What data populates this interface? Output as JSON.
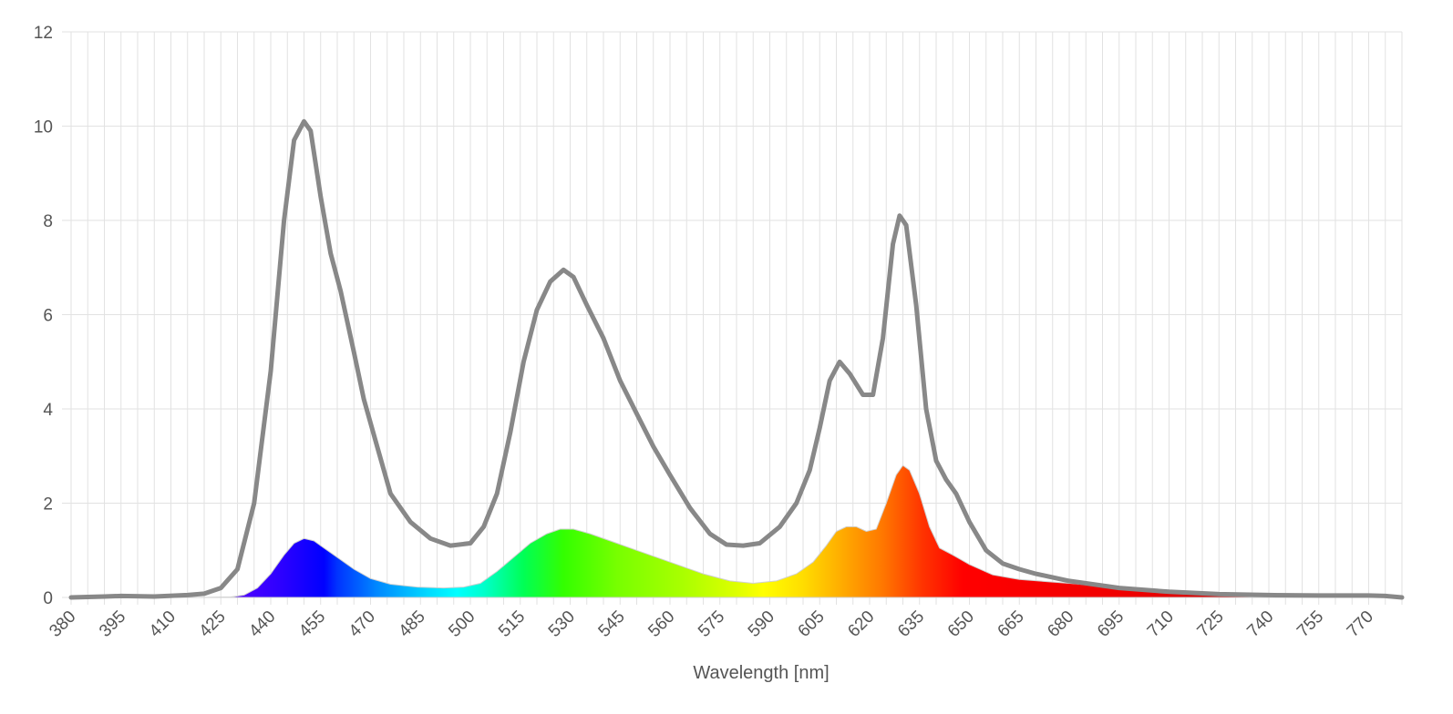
{
  "chart_data": {
    "type": "area",
    "title": "",
    "xlabel": "Wavelength [nm]",
    "ylabel": "",
    "xlim": [
      380,
      780
    ],
    "ylim": [
      0,
      12
    ],
    "grid": true,
    "legend": "none",
    "x_ticks": [
      380,
      395,
      410,
      425,
      440,
      455,
      470,
      485,
      500,
      515,
      530,
      545,
      560,
      575,
      590,
      605,
      620,
      635,
      650,
      665,
      680,
      695,
      710,
      725,
      740,
      755,
      770
    ],
    "y_ticks": [
      0,
      2,
      4,
      6,
      8,
      10,
      12
    ],
    "series": [
      {
        "style": "line",
        "color": "#888888",
        "points": [
          [
            380,
            0.0
          ],
          [
            390,
            0.02
          ],
          [
            395,
            0.03
          ],
          [
            405,
            0.02
          ],
          [
            415,
            0.05
          ],
          [
            420,
            0.08
          ],
          [
            425,
            0.2
          ],
          [
            430,
            0.6
          ],
          [
            435,
            2.0
          ],
          [
            440,
            4.8
          ],
          [
            444,
            8.0
          ],
          [
            447,
            9.7
          ],
          [
            450,
            10.1
          ],
          [
            452,
            9.9
          ],
          [
            455,
            8.5
          ],
          [
            458,
            7.3
          ],
          [
            461,
            6.5
          ],
          [
            465,
            5.2
          ],
          [
            468,
            4.2
          ],
          [
            472,
            3.2
          ],
          [
            476,
            2.2
          ],
          [
            482,
            1.6
          ],
          [
            488,
            1.25
          ],
          [
            494,
            1.1
          ],
          [
            500,
            1.15
          ],
          [
            504,
            1.5
          ],
          [
            508,
            2.2
          ],
          [
            512,
            3.5
          ],
          [
            516,
            5.0
          ],
          [
            520,
            6.1
          ],
          [
            524,
            6.7
          ],
          [
            528,
            6.95
          ],
          [
            531,
            6.8
          ],
          [
            535,
            6.2
          ],
          [
            540,
            5.5
          ],
          [
            545,
            4.6
          ],
          [
            550,
            3.9
          ],
          [
            555,
            3.2
          ],
          [
            560,
            2.6
          ],
          [
            566,
            1.9
          ],
          [
            572,
            1.35
          ],
          [
            577,
            1.12
          ],
          [
            582,
            1.1
          ],
          [
            587,
            1.15
          ],
          [
            593,
            1.5
          ],
          [
            598,
            2.0
          ],
          [
            602,
            2.7
          ],
          [
            605,
            3.6
          ],
          [
            608,
            4.6
          ],
          [
            611,
            5.0
          ],
          [
            614,
            4.75
          ],
          [
            618,
            4.3
          ],
          [
            621,
            4.3
          ],
          [
            624,
            5.5
          ],
          [
            627,
            7.5
          ],
          [
            629,
            8.1
          ],
          [
            631,
            7.9
          ],
          [
            634,
            6.2
          ],
          [
            637,
            4.0
          ],
          [
            640,
            2.9
          ],
          [
            643,
            2.5
          ],
          [
            646,
            2.2
          ],
          [
            650,
            1.6
          ],
          [
            655,
            1.0
          ],
          [
            660,
            0.72
          ],
          [
            665,
            0.6
          ],
          [
            670,
            0.5
          ],
          [
            680,
            0.35
          ],
          [
            695,
            0.2
          ],
          [
            710,
            0.12
          ],
          [
            725,
            0.07
          ],
          [
            740,
            0.05
          ],
          [
            755,
            0.04
          ],
          [
            770,
            0.04
          ],
          [
            775,
            0.03
          ],
          [
            780,
            0.0
          ]
        ]
      },
      {
        "style": "spectral-fill",
        "points": [
          [
            380,
            0.0
          ],
          [
            420,
            0.0
          ],
          [
            428,
            0.01
          ],
          [
            432,
            0.05
          ],
          [
            436,
            0.2
          ],
          [
            440,
            0.5
          ],
          [
            444,
            0.9
          ],
          [
            447,
            1.15
          ],
          [
            450,
            1.25
          ],
          [
            453,
            1.2
          ],
          [
            456,
            1.05
          ],
          [
            460,
            0.85
          ],
          [
            465,
            0.6
          ],
          [
            470,
            0.4
          ],
          [
            476,
            0.28
          ],
          [
            484,
            0.22
          ],
          [
            492,
            0.2
          ],
          [
            498,
            0.22
          ],
          [
            503,
            0.3
          ],
          [
            508,
            0.55
          ],
          [
            513,
            0.85
          ],
          [
            518,
            1.15
          ],
          [
            523,
            1.35
          ],
          [
            527,
            1.45
          ],
          [
            531,
            1.45
          ],
          [
            536,
            1.35
          ],
          [
            542,
            1.2
          ],
          [
            550,
            1.0
          ],
          [
            560,
            0.75
          ],
          [
            570,
            0.5
          ],
          [
            578,
            0.35
          ],
          [
            585,
            0.3
          ],
          [
            592,
            0.35
          ],
          [
            598,
            0.5
          ],
          [
            603,
            0.75
          ],
          [
            607,
            1.1
          ],
          [
            610,
            1.4
          ],
          [
            613,
            1.5
          ],
          [
            616,
            1.5
          ],
          [
            619,
            1.4
          ],
          [
            622,
            1.45
          ],
          [
            625,
            2.0
          ],
          [
            628,
            2.6
          ],
          [
            630,
            2.8
          ],
          [
            632,
            2.7
          ],
          [
            635,
            2.2
          ],
          [
            638,
            1.5
          ],
          [
            641,
            1.05
          ],
          [
            645,
            0.9
          ],
          [
            650,
            0.7
          ],
          [
            657,
            0.48
          ],
          [
            665,
            0.38
          ],
          [
            680,
            0.3
          ],
          [
            700,
            0.18
          ],
          [
            720,
            0.1
          ],
          [
            740,
            0.06
          ],
          [
            760,
            0.04
          ],
          [
            775,
            0.03
          ],
          [
            780,
            0.0
          ]
        ]
      }
    ]
  }
}
